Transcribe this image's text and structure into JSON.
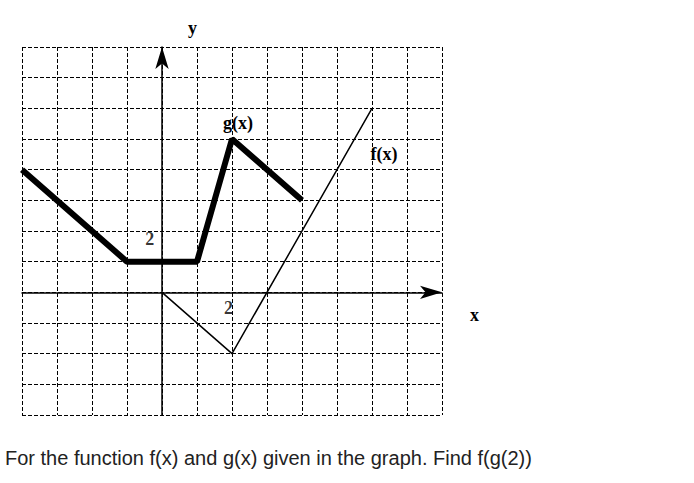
{
  "chart_data": {
    "type": "line",
    "title": "For the function f(x) and g(x) given in the graph. Find f(g(2))",
    "x_label": "x",
    "y_label": "y",
    "xlim": [
      -4,
      8
    ],
    "ylim": [
      -4,
      8
    ],
    "xticks": [
      -4,
      -3,
      -2,
      -1,
      0,
      1,
      2,
      3,
      4,
      5,
      6,
      7,
      8
    ],
    "yticks": [
      -4,
      -3,
      -2,
      -1,
      0,
      1,
      2,
      3,
      4,
      5,
      6,
      7,
      8
    ],
    "grid": true,
    "tick_labels": false,
    "series": [
      {
        "name": "g(x)",
        "color": "#000000",
        "line_style": "thick",
        "x": [
          -4,
          -1,
          1,
          2,
          4
        ],
        "values": [
          4,
          1,
          1,
          5,
          3
        ]
      },
      {
        "name": "f(x)",
        "color": "#000000",
        "line_style": "thin",
        "x": [
          0,
          2,
          6
        ],
        "values": [
          0,
          -2,
          6
        ]
      }
    ],
    "annotations": [
      {
        "text": "2",
        "x": 1.9,
        "y": -0.5
      },
      {
        "text": "2",
        "x": -0.35,
        "y": 1.75
      }
    ]
  }
}
